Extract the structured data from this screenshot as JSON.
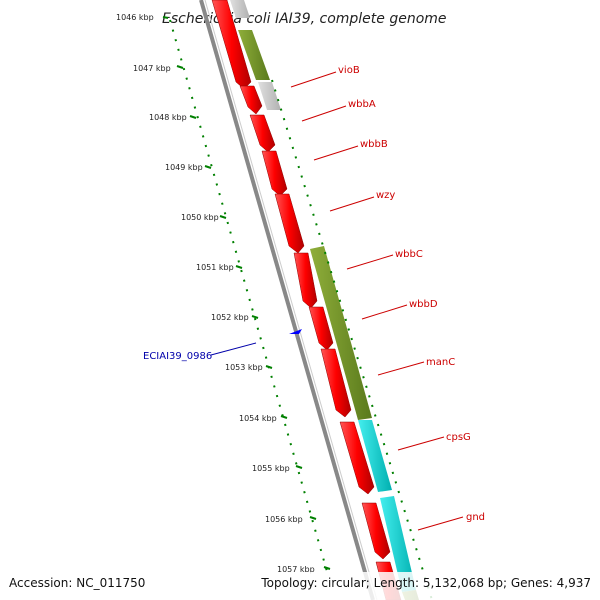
{
  "map": {
    "title": "Escherichia coli IAI39, complete genome",
    "accession": "Accession: NC_011750",
    "summary": "Topology: circular; Length: 5,132,068 bp; Genes: 4,937"
  },
  "colors": {
    "forward_cds": "#ff0000",
    "cds_olive": "#6b8e23",
    "cds_cyan": "#00cccc",
    "cds_gray": "#c8c8c8",
    "backbone": "#888888",
    "ruler": "#008000",
    "gene_label": "#cc0000",
    "rev_label": "#0000aa"
  },
  "ruler": {
    "ticks": [
      "1046 kbp",
      "1047 kbp",
      "1048 kbp",
      "1049 kbp",
      "1050 kbp",
      "1051 kbp",
      "1052 kbp",
      "1053 kbp",
      "1054 kbp",
      "1055 kbp",
      "1056 kbp",
      "1057 kbp"
    ]
  },
  "genes": [
    {
      "name": "vioB"
    },
    {
      "name": "wbbA"
    },
    {
      "name": "wbbB"
    },
    {
      "name": "wzy"
    },
    {
      "name": "wbbC"
    },
    {
      "name": "wbbD"
    },
    {
      "name": "manC"
    },
    {
      "name": "cpsG"
    },
    {
      "name": "gnd"
    }
  ],
  "reverse_genes": [
    {
      "name": "ECIAI39_0986"
    }
  ]
}
